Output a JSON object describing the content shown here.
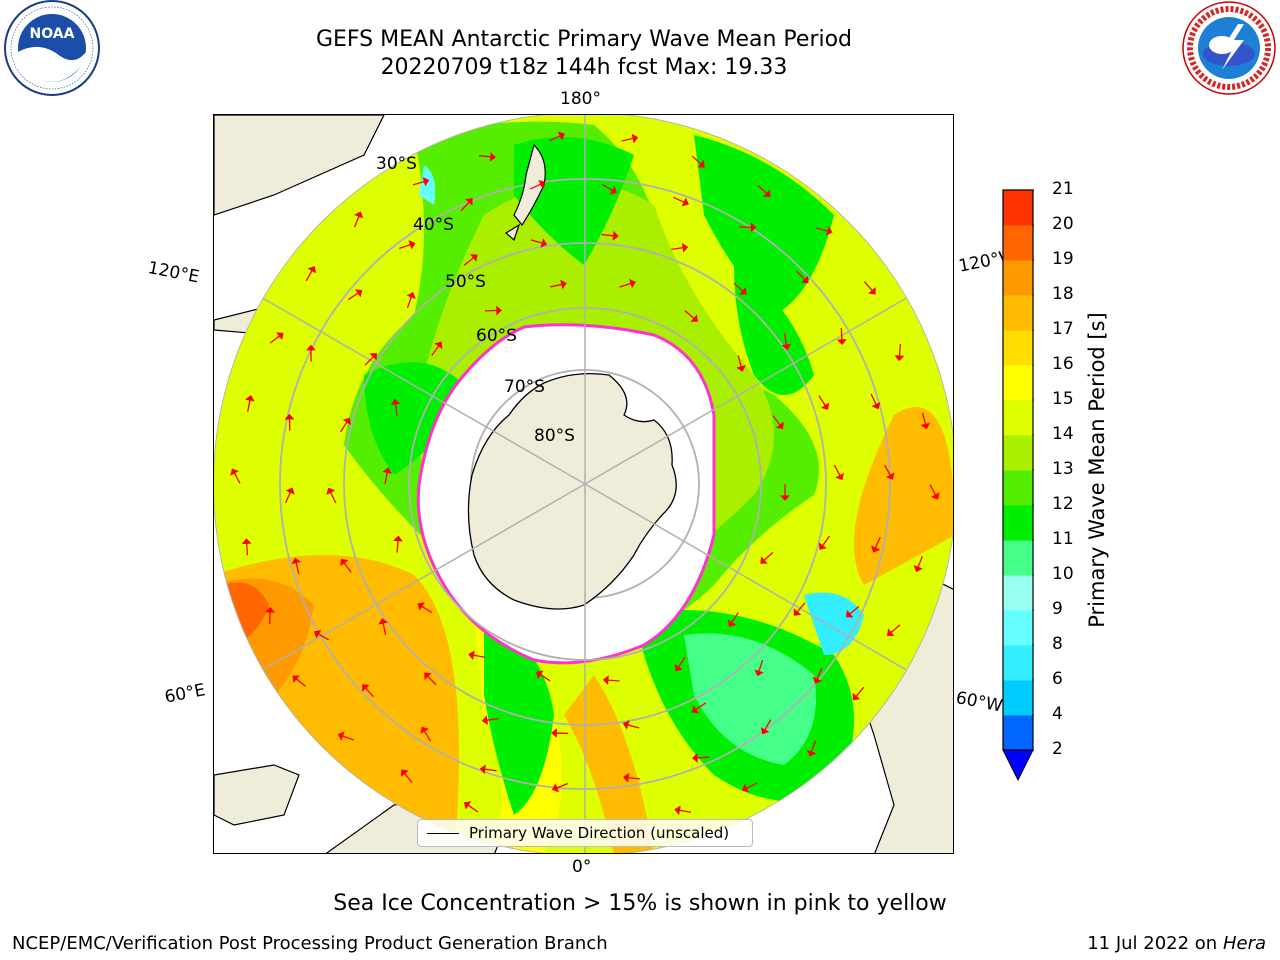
{
  "header": {
    "title_line1": "GEFS MEAN Antarctic Primary Wave Mean Period",
    "title_line2": "20220709 t18z 144h fcst   Max: 19.33"
  },
  "logos": {
    "noaa_text": "NOAA",
    "noaa_ring": "NATIONAL OCEANIC AND ATMOSPHERIC ADMINISTRATION · U.S. DEPARTMENT OF COMMERCE",
    "nws_ring": "NATIONAL WEATHER SERVICE"
  },
  "map": {
    "projection": "south-polar-stereographic",
    "lon_labels": {
      "top": "180°",
      "bottom": "0°",
      "upper_left": "120°E",
      "lower_left": "60°E",
      "upper_right": "120°W",
      "lower_right": "60°W"
    },
    "lat_labels": [
      "30°S",
      "40°S",
      "50°S",
      "60°S",
      "70°S",
      "80°S"
    ],
    "legend": "Primary Wave Direction (unscaled)",
    "arrow_color": "#ff0000",
    "sea_ice_edge_color": "#ff33cc",
    "land_color": "#efedda"
  },
  "colorbar": {
    "label": "Primary Wave Mean Period [s]",
    "ticks": [
      "2",
      "4",
      "6",
      "8",
      "9",
      "10",
      "11",
      "12",
      "13",
      "14",
      "15",
      "16",
      "17",
      "18",
      "19",
      "20",
      "21"
    ],
    "colors": [
      "#0066ff",
      "#00ccff",
      "#33eeff",
      "#66ffff",
      "#99ffee",
      "#44ff88",
      "#00ee00",
      "#55ee00",
      "#aaee00",
      "#ddff00",
      "#ffff00",
      "#ffdd00",
      "#ffbb00",
      "#ff9900",
      "#ff6600",
      "#ff3300"
    ],
    "extend_color": "#0000ff"
  },
  "bottom_note": "Sea Ice Concentration > 15% is shown in pink to yellow",
  "footer": {
    "left": "NCEP/EMC/Verification Post Processing Product Generation Branch",
    "right_date": "11 Jul 2022 on",
    "right_machine": "Hera"
  }
}
